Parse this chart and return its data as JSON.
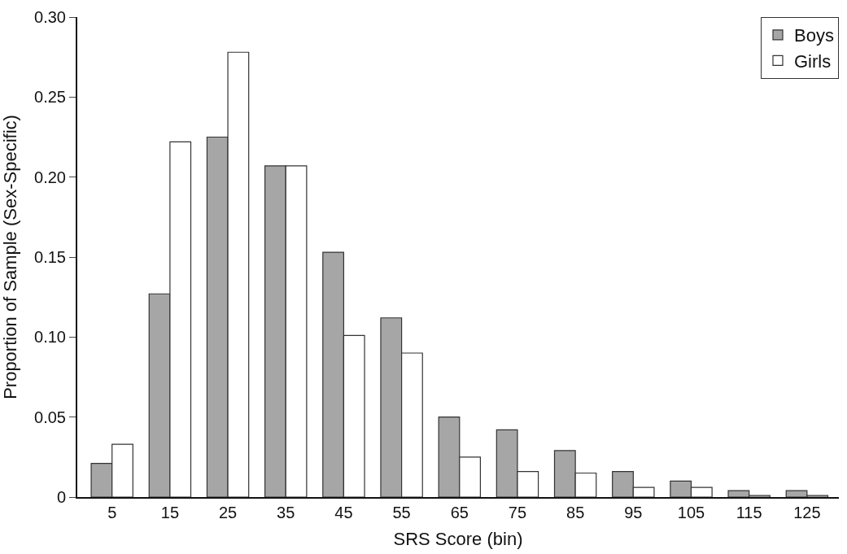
{
  "chart_data": {
    "type": "bar",
    "xlabel": "SRS Score (bin)",
    "ylabel": "Proportion of Sample (Sex-Specific)",
    "categories": [
      "5",
      "15",
      "25",
      "35",
      "45",
      "55",
      "65",
      "75",
      "85",
      "95",
      "105",
      "115",
      "125"
    ],
    "series": [
      {
        "name": "Boys",
        "color": "#a6a6a6",
        "values": [
          0.021,
          0.127,
          0.225,
          0.207,
          0.153,
          0.112,
          0.05,
          0.042,
          0.029,
          0.016,
          0.01,
          0.004,
          0.004
        ]
      },
      {
        "name": "Girls",
        "color": "#ffffff",
        "values": [
          0.033,
          0.222,
          0.278,
          0.207,
          0.101,
          0.09,
          0.025,
          0.016,
          0.015,
          0.006,
          0.006,
          0.001,
          0.001
        ]
      }
    ],
    "ylim": [
      0,
      0.3
    ],
    "yticks": [
      {
        "value": 0,
        "label": "0"
      },
      {
        "value": 0.05,
        "label": "0.05"
      },
      {
        "value": 0.1,
        "label": "0.10"
      },
      {
        "value": 0.15,
        "label": "0.15"
      },
      {
        "value": 0.2,
        "label": "0.20"
      },
      {
        "value": 0.25,
        "label": "0.25"
      },
      {
        "value": 0.3,
        "label": "0.30"
      }
    ],
    "legend": "top right"
  }
}
